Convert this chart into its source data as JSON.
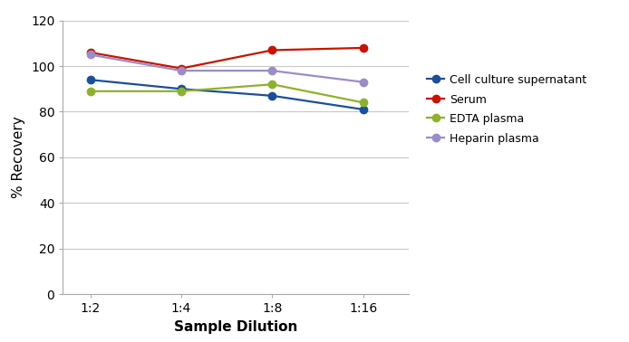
{
  "x_labels": [
    "1:2",
    "1:4",
    "1:8",
    "1:16"
  ],
  "x_positions": [
    0,
    1,
    2,
    3
  ],
  "series": [
    {
      "label": "Cell culture supernatant",
      "color": "#1a4f9c",
      "values": [
        94,
        90,
        87,
        81
      ]
    },
    {
      "label": "Serum",
      "color": "#cc1100",
      "values": [
        106,
        99,
        107,
        108
      ]
    },
    {
      "label": "EDTA plasma",
      "color": "#8db22a",
      "values": [
        89,
        89,
        92,
        84
      ]
    },
    {
      "label": "Heparin plasma",
      "color": "#9b8dc8",
      "values": [
        105,
        98,
        98,
        93
      ]
    }
  ],
  "ylabel": "% Recovery",
  "xlabel": "Sample Dilution",
  "ylim": [
    0,
    120
  ],
  "yticks": [
    0,
    20,
    40,
    60,
    80,
    100,
    120
  ],
  "background_color": "#ffffff",
  "grid_color": "#c8c8c8",
  "marker": "o",
  "markersize": 6,
  "linewidth": 1.6,
  "xlabel_fontsize": 11,
  "ylabel_fontsize": 11,
  "tick_fontsize": 10,
  "legend_fontsize": 9
}
